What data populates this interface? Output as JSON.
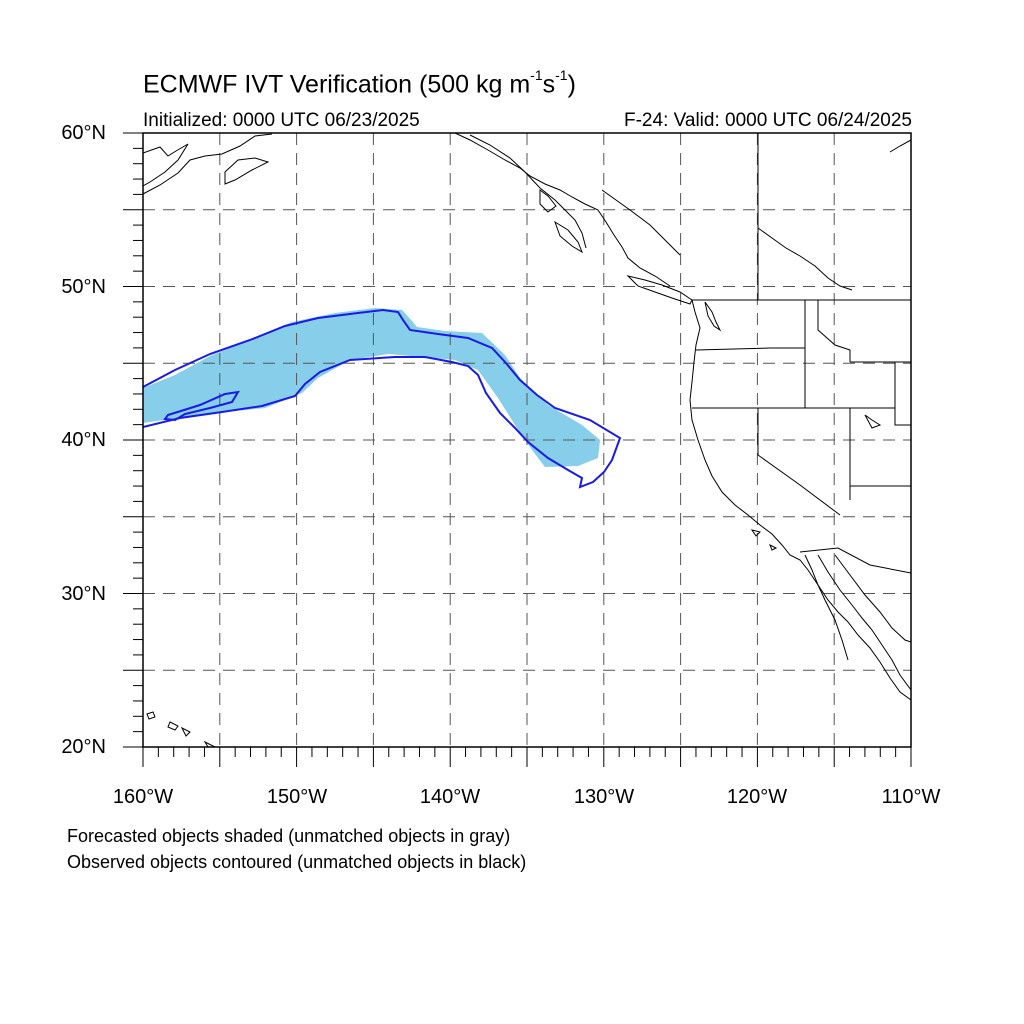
{
  "title": {
    "main_prefix": "ECMWF IVT Verification (500 kg m",
    "exp1": "-1",
    "mid": "s",
    "exp2": "-1",
    "suffix": ")"
  },
  "subtitle": {
    "left": "Initialized: 0000 UTC 06/23/2025",
    "right": "F-24: Valid: 0000 UTC 06/24/2025"
  },
  "axes": {
    "lat_labels": [
      "60°N",
      "50°N",
      "40°N",
      "30°N",
      "20°N"
    ],
    "lon_labels": [
      "160°W",
      "150°W",
      "140°W",
      "130°W",
      "120°W",
      "110°W"
    ],
    "lat_range": [
      20,
      60
    ],
    "lon_range": [
      -160,
      -110
    ],
    "grid_spacing_deg": 5
  },
  "notes": {
    "line1": "Forecasted objects shaded (unmatched objects in gray)",
    "line2": "Observed objects contoured (unmatched objects in black)"
  },
  "colors": {
    "forecast_fill": "#87ceea",
    "observed_contour": "#1a1ae6",
    "coastline": "#000000",
    "grid": "#555555"
  }
}
